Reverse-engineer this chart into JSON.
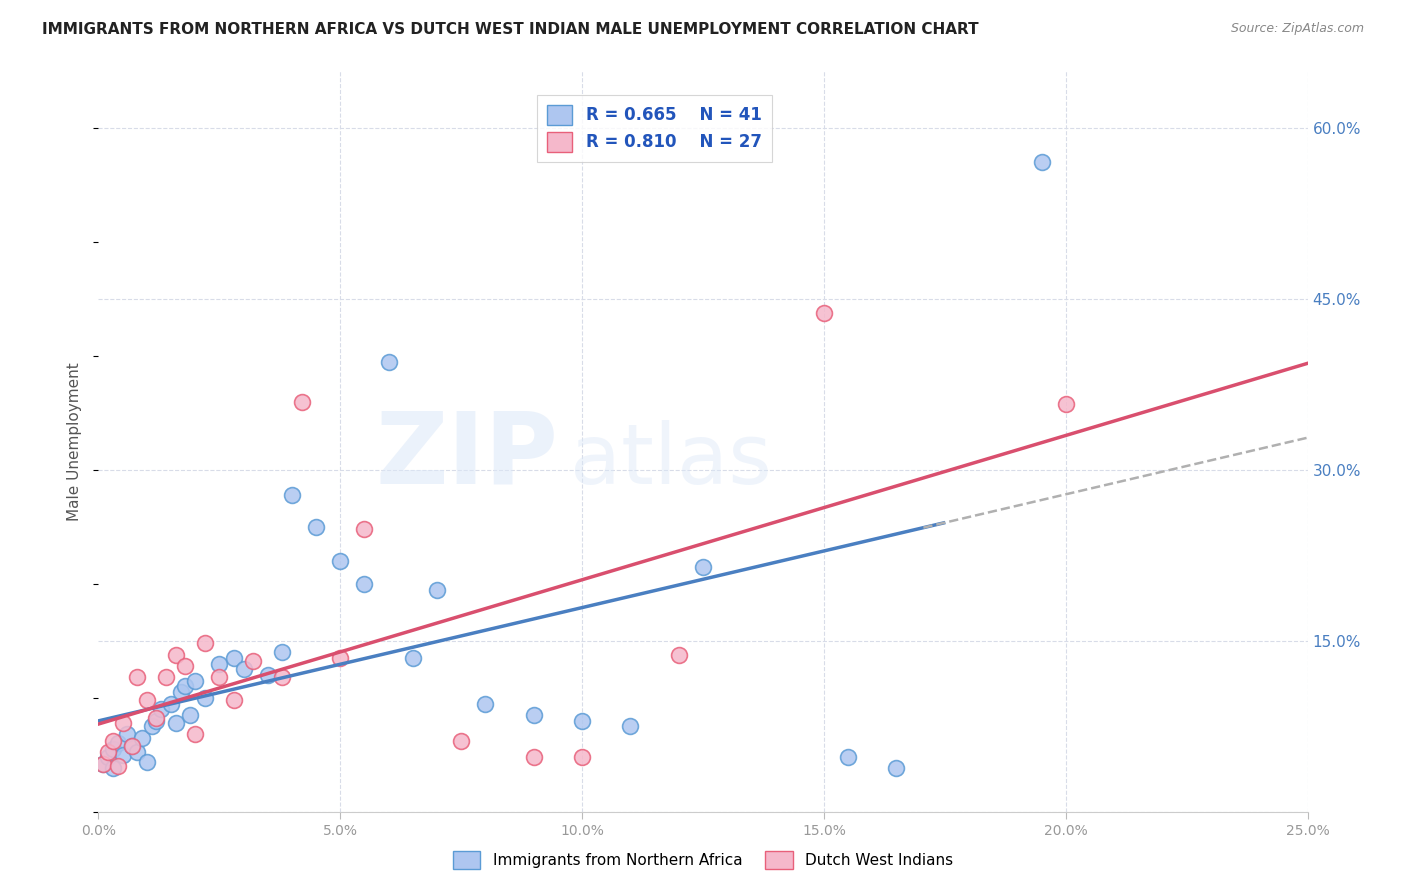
{
  "title": "IMMIGRANTS FROM NORTHERN AFRICA VS DUTCH WEST INDIAN MALE UNEMPLOYMENT CORRELATION CHART",
  "source": "Source: ZipAtlas.com",
  "ylabel": "Male Unemployment",
  "ytick_labels": [
    "",
    "15.0%",
    "30.0%",
    "45.0%",
    "60.0%"
  ],
  "ytick_vals": [
    0,
    0.15,
    0.3,
    0.45,
    0.6
  ],
  "xtick_labels": [
    "0.0%",
    "5.0%",
    "10.0%",
    "15.0%",
    "20.0%",
    "25.0%"
  ],
  "xtick_vals": [
    0.0,
    0.05,
    0.1,
    0.15,
    0.2,
    0.25
  ],
  "xrange": [
    0,
    0.25
  ],
  "yrange": [
    0,
    0.65
  ],
  "blue_R": "0.665",
  "blue_N": "41",
  "pink_R": "0.810",
  "pink_N": "27",
  "blue_fill_color": "#aec6f0",
  "pink_fill_color": "#f5b8cb",
  "blue_edge_color": "#5b9bd5",
  "pink_edge_color": "#e8607a",
  "blue_line_color": "#4a7fc1",
  "pink_line_color": "#d94f6e",
  "dashed_color": "#b0b0b0",
  "legend_text_color": "#2255bb",
  "background_color": "#ffffff",
  "grid_color": "#d8dce8",
  "right_tick_color": "#4a7fc1",
  "title_color": "#222222",
  "source_color": "#888888",
  "ylabel_color": "#555555",
  "xtick_color": "#999999",
  "blue_scatter_x": [
    0.001,
    0.002,
    0.003,
    0.003,
    0.004,
    0.005,
    0.006,
    0.007,
    0.008,
    0.009,
    0.01,
    0.011,
    0.012,
    0.013,
    0.015,
    0.016,
    0.017,
    0.018,
    0.019,
    0.02,
    0.022,
    0.025,
    0.028,
    0.03,
    0.035,
    0.038,
    0.04,
    0.045,
    0.05,
    0.055,
    0.06,
    0.065,
    0.07,
    0.08,
    0.09,
    0.1,
    0.11,
    0.125,
    0.155,
    0.165,
    0.195
  ],
  "blue_scatter_y": [
    0.042,
    0.048,
    0.038,
    0.055,
    0.06,
    0.05,
    0.068,
    0.058,
    0.052,
    0.065,
    0.044,
    0.075,
    0.08,
    0.09,
    0.095,
    0.078,
    0.105,
    0.11,
    0.085,
    0.115,
    0.1,
    0.13,
    0.135,
    0.125,
    0.12,
    0.14,
    0.278,
    0.25,
    0.22,
    0.2,
    0.395,
    0.135,
    0.195,
    0.095,
    0.085,
    0.08,
    0.075,
    0.215,
    0.048,
    0.038,
    0.57
  ],
  "pink_scatter_x": [
    0.001,
    0.002,
    0.003,
    0.004,
    0.005,
    0.007,
    0.008,
    0.01,
    0.012,
    0.014,
    0.016,
    0.018,
    0.02,
    0.022,
    0.025,
    0.028,
    0.032,
    0.038,
    0.042,
    0.05,
    0.055,
    0.075,
    0.09,
    0.1,
    0.12,
    0.15,
    0.2
  ],
  "pink_scatter_y": [
    0.042,
    0.052,
    0.062,
    0.04,
    0.078,
    0.058,
    0.118,
    0.098,
    0.082,
    0.118,
    0.138,
    0.128,
    0.068,
    0.148,
    0.118,
    0.098,
    0.132,
    0.118,
    0.36,
    0.135,
    0.248,
    0.062,
    0.048,
    0.048,
    0.138,
    0.438,
    0.358
  ]
}
